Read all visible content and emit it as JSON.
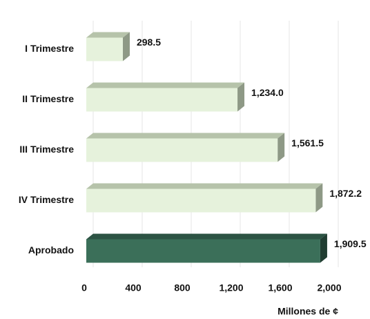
{
  "chart_data": {
    "type": "bar3d",
    "orientation": "horizontal",
    "categories": [
      "I Trimestre",
      "II Trimestre",
      "III Trimestre",
      "IV Trimestre",
      "Aprobado"
    ],
    "values": [
      298.5,
      1234.0,
      1561.5,
      1872.2,
      1909.5
    ],
    "value_labels": [
      "298.5",
      "1,234.0",
      "1,561.5",
      "1,872.2",
      "1,909.5"
    ],
    "colors": [
      "#e6f2dc",
      "#e6f2dc",
      "#e6f2dc",
      "#e6f2dc",
      "#3b6f59"
    ],
    "xlim": [
      0,
      2000
    ],
    "xticks": [
      0,
      400,
      800,
      {
        "value": 1200,
        "label": "1,200"
      },
      {
        "value": 1600,
        "label": "1,600"
      },
      {
        "value": 2000,
        "label": "2,000"
      }
    ],
    "xlabel": "Millones de ¢",
    "grid": true
  }
}
